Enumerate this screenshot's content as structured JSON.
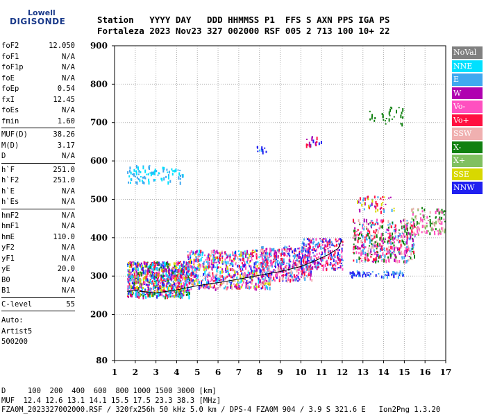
{
  "logo": {
    "top": "Lowell",
    "bottom": "DIGISONDE"
  },
  "header": {
    "row1": "Station   YYYY DAY   DDD HHMMSS P1  FFS S AXN PPS IGA PS",
    "row2": "Fortaleza 2023 Nov23 327 002000 RSF 005 2 713 100 10+ 22"
  },
  "sidebar": {
    "group1": [
      {
        "k": "foF2",
        "v": "12.050"
      },
      {
        "k": "foF1",
        "v": "N/A"
      },
      {
        "k": "foF1p",
        "v": "N/A"
      },
      {
        "k": "foE",
        "v": "N/A"
      },
      {
        "k": "foEp",
        "v": "0.54"
      },
      {
        "k": "fxI",
        "v": "12.45"
      },
      {
        "k": "foEs",
        "v": "N/A"
      },
      {
        "k": "fmin",
        "v": "1.60"
      }
    ],
    "group2": [
      {
        "k": "MUF(D)",
        "v": "38.26"
      },
      {
        "k": "M(D)",
        "v": "3.17"
      },
      {
        "k": "D",
        "v": "N/A"
      }
    ],
    "group3": [
      {
        "k": "h`F",
        "v": "251.0"
      },
      {
        "k": "h`F2",
        "v": "251.0"
      },
      {
        "k": "h`E",
        "v": "N/A"
      },
      {
        "k": "h`Es",
        "v": "N/A"
      }
    ],
    "group4": [
      {
        "k": "hmF2",
        "v": "N/A"
      },
      {
        "k": "hmF1",
        "v": "N/A"
      },
      {
        "k": "hmE",
        "v": "110.0"
      },
      {
        "k": "yF2",
        "v": "N/A"
      },
      {
        "k": "yF1",
        "v": "N/A"
      },
      {
        "k": "yE",
        "v": "20.0"
      },
      {
        "k": "B0",
        "v": "N/A"
      },
      {
        "k": "B1",
        "v": "N/A"
      }
    ],
    "group5": [
      {
        "k": "C-level",
        "v": "55"
      }
    ],
    "auto": [
      "Auto:",
      "Artist5",
      "500200"
    ]
  },
  "legend": [
    {
      "label": "NoVal",
      "color": "#808080"
    },
    {
      "label": "NNE",
      "color": "#00e0ff"
    },
    {
      "label": "E",
      "color": "#40a8f0"
    },
    {
      "label": "W",
      "color": "#b000b0"
    },
    {
      "label": "Vo-",
      "color": "#ff50c0"
    },
    {
      "label": "Vo+",
      "color": "#ff1040"
    },
    {
      "label": "SSW",
      "color": "#f0b0b0"
    },
    {
      "label": "X-",
      "color": "#108010"
    },
    {
      "label": "X+",
      "color": "#80c060"
    },
    {
      "label": "SSE",
      "color": "#d8d800"
    },
    {
      "label": "NNW",
      "color": "#2020f0"
    }
  ],
  "footer": {
    "line1": "D     100  200  400  600  800 1000 1500 3000 [km]",
    "line2": "MUF  12.4 12.6 13.1 14.1 15.5 17.5 23.3 38.3 [MHz]",
    "line3": "FZA0M_2023327002000.RSF / 320fx256h 50 kHz 5.0 km / DPS-4 FZA0M 904 / 3.9 S 321.6 E   Ion2Png 1.3.20"
  },
  "chart_data": {
    "type": "scatter",
    "xlim": [
      1,
      17
    ],
    "ylim": [
      80,
      900
    ],
    "x_ticks": [
      "1",
      "2",
      "3",
      "4",
      "5",
      "6",
      "7",
      "8",
      "9",
      "10",
      "11",
      "12",
      "13",
      "14",
      "15",
      "16",
      "17"
    ],
    "y_ticks": [
      "80",
      "200",
      "300",
      "400",
      "500",
      "600",
      "700",
      "800",
      "900"
    ],
    "grid": true,
    "trace": [
      [
        1.6,
        260
      ],
      [
        2,
        262
      ],
      [
        3,
        256
      ],
      [
        4,
        264
      ],
      [
        5,
        275
      ],
      [
        6,
        283
      ],
      [
        7,
        292
      ],
      [
        8,
        302
      ],
      [
        9,
        312
      ],
      [
        10,
        325
      ],
      [
        10.7,
        340
      ],
      [
        11.3,
        355
      ],
      [
        11.8,
        372
      ],
      [
        12,
        395
      ]
    ],
    "clusters": [
      {
        "x": [
          1.6,
          4.6
        ],
        "y": [
          248,
          340
        ],
        "n": 900,
        "colors": [
          "Vo+",
          "Vo-",
          "E",
          "W",
          "X-",
          "NNE",
          "NNW",
          "SSE"
        ]
      },
      {
        "x": [
          4.5,
          8.5
        ],
        "y": [
          270,
          370
        ],
        "n": 700,
        "colors": [
          "Vo+",
          "Vo-",
          "E",
          "W",
          "NNE",
          "NNW",
          "SSE",
          "SSW"
        ]
      },
      {
        "x": [
          8.0,
          10.5
        ],
        "y": [
          290,
          380
        ],
        "n": 400,
        "colors": [
          "Vo+",
          "Vo-",
          "E",
          "W",
          "NNW",
          "SSW"
        ]
      },
      {
        "x": [
          10.0,
          12.0
        ],
        "y": [
          320,
          400
        ],
        "n": 250,
        "colors": [
          "Vo+",
          "Vo-",
          "W",
          "NNW",
          "E"
        ]
      },
      {
        "x": [
          12.5,
          15.5
        ],
        "y": [
          340,
          450
        ],
        "n": 450,
        "colors": [
          "Vo+",
          "Vo-",
          "E",
          "W",
          "X-",
          "SSW"
        ]
      },
      {
        "x": [
          15.3,
          17.0
        ],
        "y": [
          410,
          480
        ],
        "n": 120,
        "colors": [
          "X-",
          "X+",
          "Vo-",
          "SSW"
        ]
      },
      {
        "x": [
          12.3,
          15.0
        ],
        "y": [
          300,
          315
        ],
        "n": 60,
        "colors": [
          "E",
          "NNW"
        ]
      },
      {
        "x": [
          1.6,
          4.3
        ],
        "y": [
          545,
          590
        ],
        "n": 90,
        "colors": [
          "E",
          "NNE"
        ]
      },
      {
        "x": [
          12.7,
          14.5
        ],
        "y": [
          470,
          510
        ],
        "n": 50,
        "colors": [
          "SSE",
          "E",
          "W",
          "Vo+"
        ]
      },
      {
        "x": [
          13.3,
          14.9
        ],
        "y": [
          698,
          742
        ],
        "n": 30,
        "colors": [
          "X-"
        ]
      },
      {
        "x": [
          10.2,
          11.0
        ],
        "y": [
          640,
          665
        ],
        "n": 18,
        "colors": [
          "W",
          "NNW",
          "Vo+"
        ]
      },
      {
        "x": [
          7.7,
          8.3
        ],
        "y": [
          625,
          640
        ],
        "n": 10,
        "colors": [
          "NNW",
          "E"
        ]
      }
    ]
  }
}
